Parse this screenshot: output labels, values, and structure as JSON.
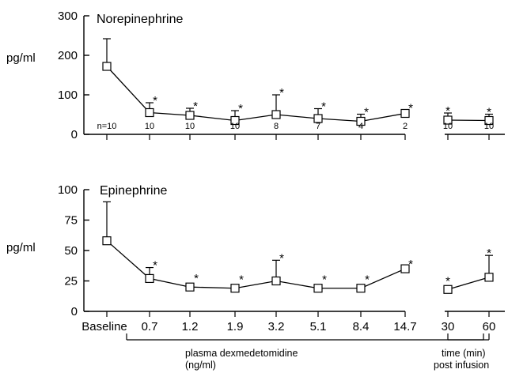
{
  "chart_data": [
    {
      "type": "line",
      "title": "Norepinephrine",
      "ylabel": "pg/ml",
      "ylim": [
        0,
        300
      ],
      "yticks": [
        "300",
        "200",
        "100",
        "0"
      ],
      "x_labels": [
        "Baseline",
        "0.7",
        "1.2",
        "1.9",
        "3.2",
        "5.1",
        "8.4",
        "14.7"
      ],
      "values": [
        172,
        55,
        48,
        35,
        50,
        40,
        33,
        53
      ],
      "error_bars": [
        70,
        25,
        18,
        25,
        50,
        25,
        18,
        8
      ],
      "significant": [
        false,
        true,
        true,
        true,
        true,
        true,
        true,
        true
      ],
      "n_labels": [
        "n=10",
        "10",
        "10",
        "10",
        "8",
        "7",
        "4",
        "2"
      ],
      "post_infusion": {
        "x_labels": [
          "30",
          "60"
        ],
        "values": [
          36,
          35
        ],
        "error_bars": [
          18,
          16
        ],
        "significant": [
          true,
          true
        ],
        "n_labels": [
          "10",
          "10"
        ]
      }
    },
    {
      "type": "line",
      "title": "Epinephrine",
      "ylabel": "pg/ml",
      "ylim": [
        0,
        100
      ],
      "yticks": [
        "100",
        "75",
        "50",
        "25",
        "0"
      ],
      "x_labels": [
        "Baseline",
        "0.7",
        "1.2",
        "1.9",
        "3.2",
        "5.1",
        "8.4",
        "14.7"
      ],
      "values": [
        58,
        27,
        20,
        19,
        25,
        19,
        19,
        35
      ],
      "error_bars": [
        32,
        9,
        0,
        0,
        17,
        0,
        0,
        2
      ],
      "significant": [
        false,
        true,
        true,
        true,
        true,
        true,
        true,
        true
      ],
      "post_infusion": {
        "x_labels": [
          "30",
          "60"
        ],
        "values": [
          18,
          28
        ],
        "error_bars": [
          0,
          18
        ],
        "significant": [
          true,
          true
        ]
      }
    }
  ],
  "bracket_main_label": "plasma dexmedetomidine",
  "bracket_main_unit": "(ng/ml)",
  "bracket_post_label": "time (min)",
  "bracket_post_label2": "post infusion",
  "significance_marker": "*"
}
